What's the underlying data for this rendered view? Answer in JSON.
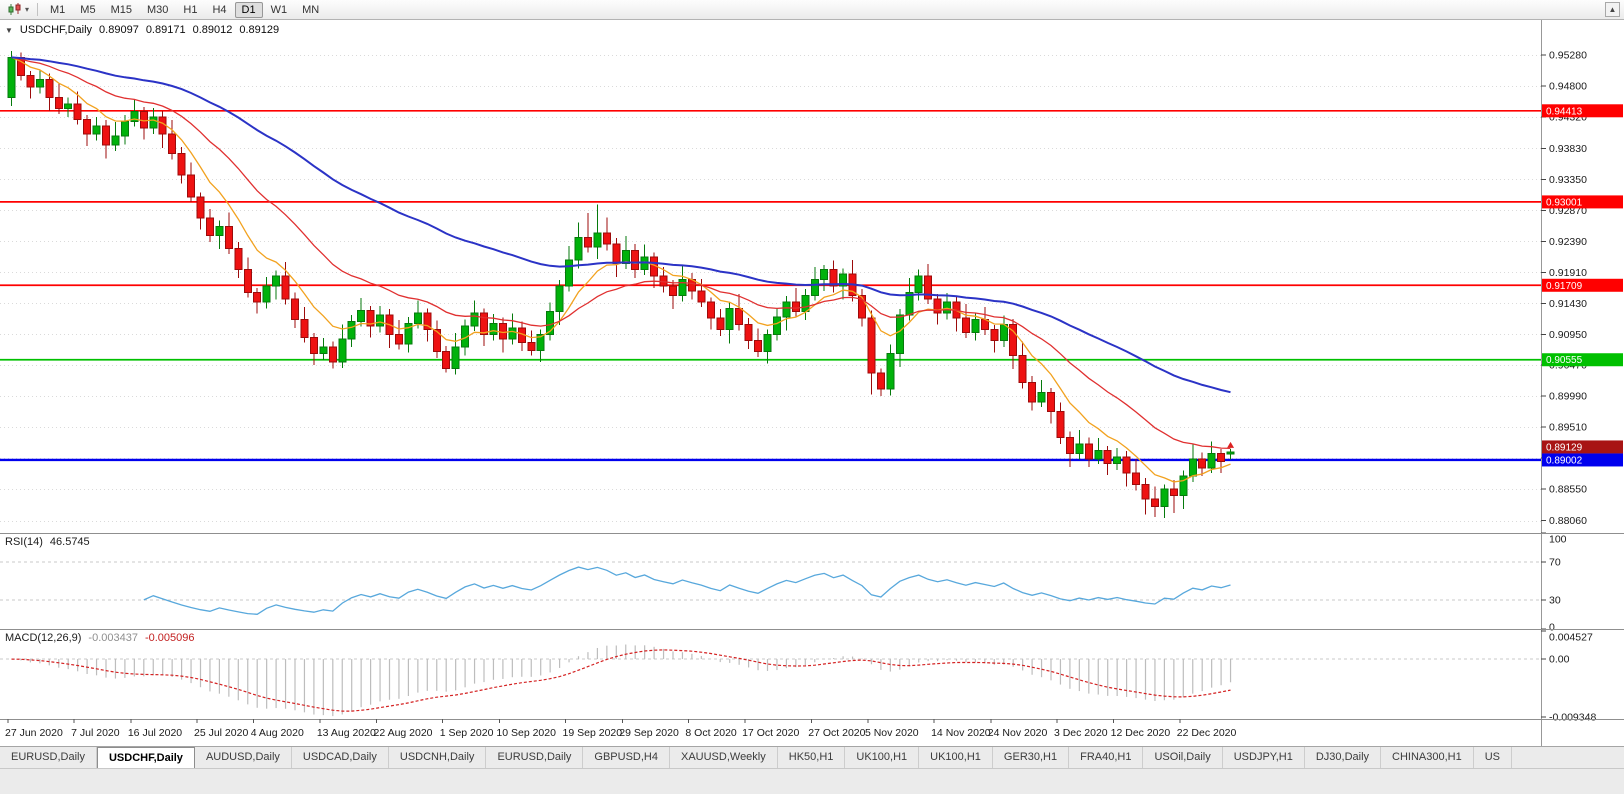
{
  "icons": {
    "dropdown_small": "▾",
    "chart_dropdown": "▼",
    "scroll_up": "▲"
  },
  "toolbar": {
    "timeframes": [
      "M1",
      "M5",
      "M15",
      "M30",
      "H1",
      "H4",
      "D1",
      "W1",
      "MN"
    ],
    "active_timeframe": "D1"
  },
  "chart": {
    "title_symbol": "USDCHF,Daily",
    "ohlc": {
      "open": "0.89097",
      "high": "0.89171",
      "low": "0.89012",
      "close": "0.89129"
    }
  },
  "rsi": {
    "label": "RSI(14)",
    "value": "46.5745"
  },
  "macd": {
    "label": "MACD(12,26,9)",
    "value1": "-0.003437",
    "value2": "-0.005096"
  },
  "tabs": {
    "items": [
      "EURUSD,Daily",
      "USDCHF,Daily",
      "AUDUSD,Daily",
      "USDCAD,Daily",
      "USDCNH,Daily",
      "EURUSD,Daily",
      "GBPUSD,H4",
      "XAUUSD,Weekly",
      "HK50,H1",
      "UK100,H1",
      "UK100,H1",
      "GER30,H1",
      "FRA40,H1",
      "USOil,Daily",
      "USDJPY,H1",
      "DJ30,Daily",
      "CHINA300,H1",
      "US"
    ],
    "active_index": 1
  },
  "chart_data": {
    "type": "candlestick",
    "title": "USDCHF,Daily",
    "price_axis_ticks": [
      0.9528,
      0.948,
      0.9432,
      0.9383,
      0.9335,
      0.9287,
      0.9239,
      0.9191,
      0.9143,
      0.9095,
      0.9047,
      0.8999,
      0.8951,
      0.8903,
      0.8855,
      0.8806
    ],
    "price_range": {
      "top": 0.9582,
      "bottom": 0.8787
    },
    "date_labels": [
      {
        "t": "27 Jun 2020",
        "i": 0
      },
      {
        "t": "7 Jul 2020",
        "i": 7
      },
      {
        "t": "16 Jul 2020",
        "i": 13
      },
      {
        "t": "25 Jul 2020",
        "i": 20
      },
      {
        "t": "4 Aug 2020",
        "i": 26
      },
      {
        "t": "13 Aug 2020",
        "i": 33
      },
      {
        "t": "22 Aug 2020",
        "i": 39
      },
      {
        "t": "1 Sep 2020",
        "i": 46
      },
      {
        "t": "10 Sep 2020",
        "i": 52
      },
      {
        "t": "19 Sep 2020",
        "i": 59
      },
      {
        "t": "29 Sep 2020",
        "i": 65
      },
      {
        "t": "8 Oct 2020",
        "i": 72
      },
      {
        "t": "17 Oct 2020",
        "i": 78
      },
      {
        "t": "27 Oct 2020",
        "i": 85
      },
      {
        "t": "5 Nov 2020",
        "i": 91
      },
      {
        "t": "14 Nov 2020",
        "i": 98
      },
      {
        "t": "24 Nov 2020",
        "i": 104
      },
      {
        "t": "3 Dec 2020",
        "i": 111
      },
      {
        "t": "12 Dec 2020",
        "i": 117
      },
      {
        "t": "22 Dec 2020",
        "i": 124
      }
    ],
    "closes": [
      0.9524,
      0.9496,
      0.9478,
      0.949,
      0.9462,
      0.9445,
      0.9452,
      0.9428,
      0.9405,
      0.9418,
      0.9388,
      0.9402,
      0.9425,
      0.944,
      0.9415,
      0.9432,
      0.9405,
      0.9375,
      0.9342,
      0.9308,
      0.9275,
      0.9248,
      0.9262,
      0.9228,
      0.9195,
      0.916,
      0.9145,
      0.917,
      0.9185,
      0.915,
      0.9118,
      0.909,
      0.9065,
      0.9075,
      0.9052,
      0.9088,
      0.9115,
      0.9132,
      0.9108,
      0.9125,
      0.9095,
      0.908,
      0.9112,
      0.9128,
      0.9102,
      0.9068,
      0.9042,
      0.9075,
      0.9108,
      0.9128,
      0.9095,
      0.9112,
      0.9088,
      0.9105,
      0.9082,
      0.907,
      0.9095,
      0.913,
      0.917,
      0.921,
      0.9245,
      0.923,
      0.9252,
      0.9235,
      0.9205,
      0.9225,
      0.9195,
      0.9215,
      0.9185,
      0.917,
      0.9155,
      0.918,
      0.9162,
      0.9145,
      0.912,
      0.9102,
      0.9135,
      0.911,
      0.9085,
      0.9068,
      0.9095,
      0.9122,
      0.9145,
      0.913,
      0.9155,
      0.918,
      0.9195,
      0.917,
      0.9188,
      0.9155,
      0.912,
      0.9035,
      0.901,
      0.9065,
      0.9125,
      0.916,
      0.9185,
      0.915,
      0.9128,
      0.9145,
      0.912,
      0.9098,
      0.9118,
      0.9102,
      0.9085,
      0.911,
      0.9062,
      0.902,
      0.899,
      0.9005,
      0.8975,
      0.8935,
      0.891,
      0.8925,
      0.8902,
      0.8915,
      0.8895,
      0.8905,
      0.888,
      0.8862,
      0.884,
      0.8828,
      0.8855,
      0.8845,
      0.8875,
      0.8902,
      0.8888,
      0.891,
      0.8898,
      0.89129
    ],
    "first_open": 0.9462,
    "wick_high_cycle": [
      0.001,
      0.0019,
      0.0007,
      0.0014,
      0.0009,
      0.0022
    ],
    "wick_low_cycle": [
      0.0013,
      0.0008,
      0.0018,
      0.001,
      0.0021,
      0.0009
    ],
    "candle_overrides": {
      "1": {
        "high": 0.9532
      },
      "34": {
        "low": 0.9042
      },
      "46": {
        "low": 0.9036
      },
      "60": {
        "high": 0.9268
      },
      "61": {
        "high": 0.9283
      },
      "62": {
        "high": 0.9296
      },
      "63": {
        "high": 0.9276
      },
      "91": {
        "low": 0.9002,
        "high": 0.9132
      },
      "92": {
        "low": 0.8999
      },
      "120": {
        "low": 0.8816
      },
      "121": {
        "low": 0.8812
      },
      "123": {
        "low": 0.8818
      }
    },
    "last_candle": {
      "open": 0.89097,
      "high": 0.89171,
      "low": 0.89012,
      "close": 0.89129
    },
    "moving_averages": [
      {
        "period": 8,
        "color": "#f2a21f",
        "width": 1.3
      },
      {
        "period": 21,
        "color": "#e03030",
        "width": 1.3
      },
      {
        "period": 55,
        "color": "#2b33c6",
        "width": 2
      }
    ],
    "hlines": [
      {
        "price": 0.94413,
        "color": "#ff0000",
        "width": 1.7,
        "label": "0.94413"
      },
      {
        "price": 0.93001,
        "color": "#ff0000",
        "width": 1.7,
        "label": "0.93001"
      },
      {
        "price": 0.91709,
        "color": "#ff0000",
        "width": 1.7,
        "label": "0.91709"
      },
      {
        "price": 0.90555,
        "color": "#00c000",
        "width": 1.7,
        "label": "0.90555"
      },
      {
        "price": 0.89002,
        "color": "#0000ee",
        "width": 2.4,
        "label": "0.89002"
      }
    ],
    "current_price": {
      "price": 0.89129,
      "label": "0.89129",
      "color": "#a81414"
    },
    "price_arrow": {
      "price": 0.8922,
      "color": "#dd2222"
    },
    "rsi": {
      "period": 14,
      "color": "#58a8dc",
      "axis": [
        100,
        70,
        30,
        0
      ],
      "dashed_levels": [
        70,
        30
      ],
      "value": 46.5745
    },
    "macd": {
      "fast": 12,
      "slow": 26,
      "signal": 9,
      "histogram_color": "#bdbdbd",
      "signal_color": "#d42222",
      "max": 0.004527,
      "min": -0.009348,
      "axis_labels": [
        "0.004527",
        "0.00",
        "-0.009348"
      ],
      "macd_value": -0.003437,
      "signal_value": -0.005096
    },
    "colors": {
      "up": "#00b20b",
      "up_stroke": "#067a0c",
      "down": "#ee1212",
      "down_stroke": "#9c0b0b",
      "grid": "#dadada",
      "axis_line": "#989898",
      "divider": "#8f8f8f",
      "text": "#1a1a1a"
    }
  }
}
